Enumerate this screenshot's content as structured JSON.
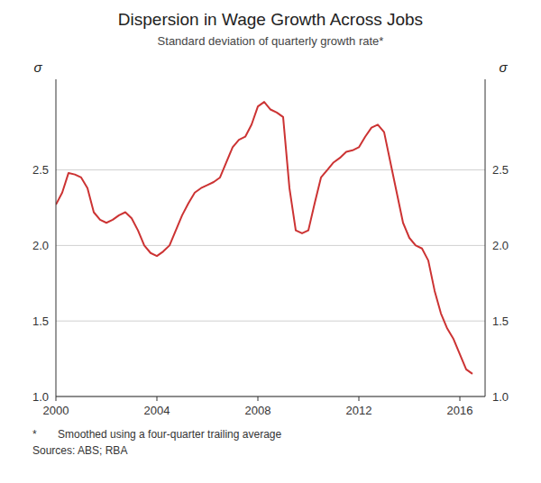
{
  "chart_data": {
    "type": "line",
    "title": "Dispersion in Wage Growth Across Jobs",
    "subtitle": "Standard deviation of quarterly growth rate*",
    "ylabel": "σ",
    "y2label": "σ",
    "annotations": [
      "*       Smoothed using a four-quarter trailing average",
      "Sources: ABS; RBA"
    ],
    "color": "#cc3333",
    "grid": true,
    "xlim": [
      2000,
      2017
    ],
    "ylim": [
      1.0,
      3.1
    ],
    "y2lim": [
      1.0,
      3.1
    ],
    "xticks": [
      2000,
      2004,
      2008,
      2012,
      2016
    ],
    "yticks": [
      {
        "value": 1.0,
        "label": "1.0"
      },
      1.5,
      {
        "value": 2.0,
        "label": "2.0"
      },
      2.5
    ],
    "y2ticks": [
      {
        "value": 1.0,
        "label": "1.0"
      },
      1.5,
      {
        "value": 2.0,
        "label": "2.0"
      },
      2.5
    ],
    "x": [
      2000.0,
      2000.25,
      2000.5,
      2000.75,
      2001.0,
      2001.25,
      2001.5,
      2001.75,
      2002.0,
      2002.25,
      2002.5,
      2002.75,
      2003.0,
      2003.25,
      2003.5,
      2003.75,
      2004.0,
      2004.25,
      2004.5,
      2004.75,
      2005.0,
      2005.25,
      2005.5,
      2005.75,
      2006.0,
      2006.25,
      2006.5,
      2006.75,
      2007.0,
      2007.25,
      2007.5,
      2007.75,
      2008.0,
      2008.25,
      2008.5,
      2008.75,
      2009.0,
      2009.25,
      2009.5,
      2009.75,
      2010.0,
      2010.25,
      2010.5,
      2010.75,
      2011.0,
      2011.25,
      2011.5,
      2011.75,
      2012.0,
      2012.25,
      2012.5,
      2012.75,
      2013.0,
      2013.25,
      2013.5,
      2013.75,
      2014.0,
      2014.25,
      2014.5,
      2014.75,
      2015.0,
      2015.25,
      2015.5,
      2015.75,
      2016.0,
      2016.25,
      2016.5
    ],
    "values": [
      2.27,
      2.35,
      2.48,
      2.47,
      2.45,
      2.38,
      2.22,
      2.17,
      2.15,
      2.17,
      2.2,
      2.22,
      2.18,
      2.1,
      2.0,
      1.95,
      1.93,
      1.96,
      2.0,
      2.1,
      2.2,
      2.28,
      2.35,
      2.38,
      2.4,
      2.42,
      2.45,
      2.55,
      2.65,
      2.7,
      2.72,
      2.8,
      2.92,
      2.95,
      2.9,
      2.88,
      2.85,
      2.38,
      2.1,
      2.08,
      2.1,
      2.28,
      2.45,
      2.5,
      2.55,
      2.58,
      2.62,
      2.63,
      2.65,
      2.72,
      2.78,
      2.8,
      2.75,
      2.55,
      2.35,
      2.15,
      2.05,
      2.0,
      1.98,
      1.9,
      1.7,
      1.55,
      1.45,
      1.38,
      1.28,
      1.18,
      1.15
    ]
  }
}
